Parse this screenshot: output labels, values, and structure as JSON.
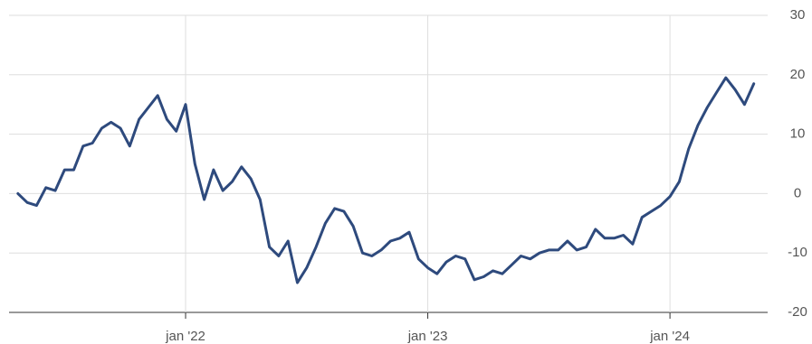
{
  "chart_data": {
    "type": "line",
    "categories": [
      null,
      null,
      null,
      null,
      null,
      null,
      null,
      null,
      null,
      null,
      null,
      null,
      null,
      null,
      null,
      null,
      null,
      null,
      "jan '22",
      null,
      null,
      null,
      null,
      null,
      null,
      null,
      null,
      null,
      null,
      null,
      null,
      null,
      null,
      null,
      null,
      null,
      null,
      null,
      null,
      null,
      null,
      null,
      null,
      null,
      "jan '23",
      null,
      null,
      null,
      null,
      null,
      null,
      null,
      null,
      null,
      null,
      null,
      null,
      null,
      null,
      null,
      null,
      null,
      null,
      null,
      null,
      null,
      null,
      null,
      null,
      null,
      "jan '24",
      null,
      null,
      null,
      null,
      null,
      null,
      null,
      null,
      null
    ],
    "series": [
      {
        "color": "#2e4a7d",
        "values": [
          0,
          -1.5,
          -2,
          1,
          0.5,
          4,
          4,
          8,
          8.5,
          11,
          12,
          11,
          8,
          12.5,
          14.5,
          16.5,
          12.5,
          10.5,
          15,
          5,
          -1,
          4,
          0.5,
          2,
          4.5,
          2.5,
          -1,
          -9,
          -10.5,
          -8,
          -15,
          -12.5,
          -9,
          -5,
          -2.5,
          -3,
          -5.5,
          -10,
          -10.5,
          -9.5,
          -8,
          -7.5,
          -6.5,
          -11,
          -12.5,
          -13.5,
          -11.5,
          -10.5,
          -11,
          -14.5,
          -14,
          -13,
          -13.5,
          -12,
          -10.5,
          -11,
          -10,
          -9.5,
          -9.5,
          -8,
          -9.5,
          -9,
          -6,
          -7.5,
          -7.5,
          -7,
          -8.5,
          -4,
          -3,
          -2,
          -0.5,
          2,
          7.5,
          11.5,
          14.5,
          17,
          19.5,
          17.5,
          15,
          18.5
        ]
      }
    ],
    "ylim": [
      -20,
      30
    ],
    "yticks": [
      -20,
      -10,
      0,
      10,
      20,
      30
    ],
    "grid": true
  }
}
